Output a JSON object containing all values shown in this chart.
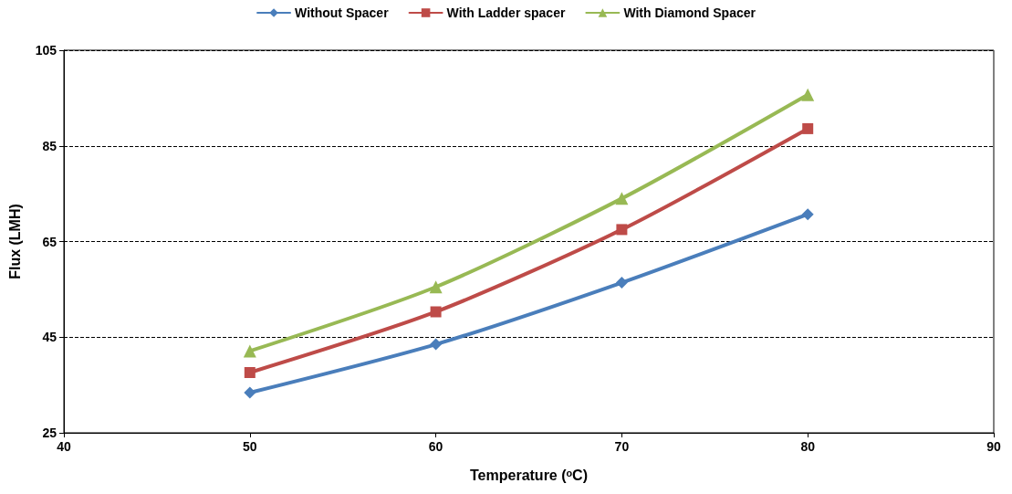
{
  "chart_data": {
    "type": "line",
    "xlabel": "Temperature (ᵒC)",
    "ylabel": "Flux (LMH)",
    "x": [
      50,
      60,
      70,
      80
    ],
    "series": [
      {
        "name": "Without Spacer",
        "color": "#4a7ebb",
        "marker": "diamond",
        "values": [
          33.4,
          43.5,
          56.4,
          70.7
        ]
      },
      {
        "name": "With Ladder spacer",
        "color": "#be4b48",
        "marker": "square",
        "values": [
          37.6,
          50.3,
          67.5,
          88.6
        ]
      },
      {
        "name": "With Diamond Spacer",
        "color": "#98b954",
        "marker": "triangle",
        "values": [
          42.1,
          55.5,
          74,
          95.7
        ]
      }
    ],
    "xlim": [
      40,
      90
    ],
    "xticks": [
      40,
      50,
      60,
      70,
      80,
      90
    ],
    "ylim": [
      25,
      105
    ],
    "yticks": [
      25,
      45,
      65,
      85,
      105
    ],
    "grid": "y",
    "legend": "top",
    "line_style": "solid"
  }
}
